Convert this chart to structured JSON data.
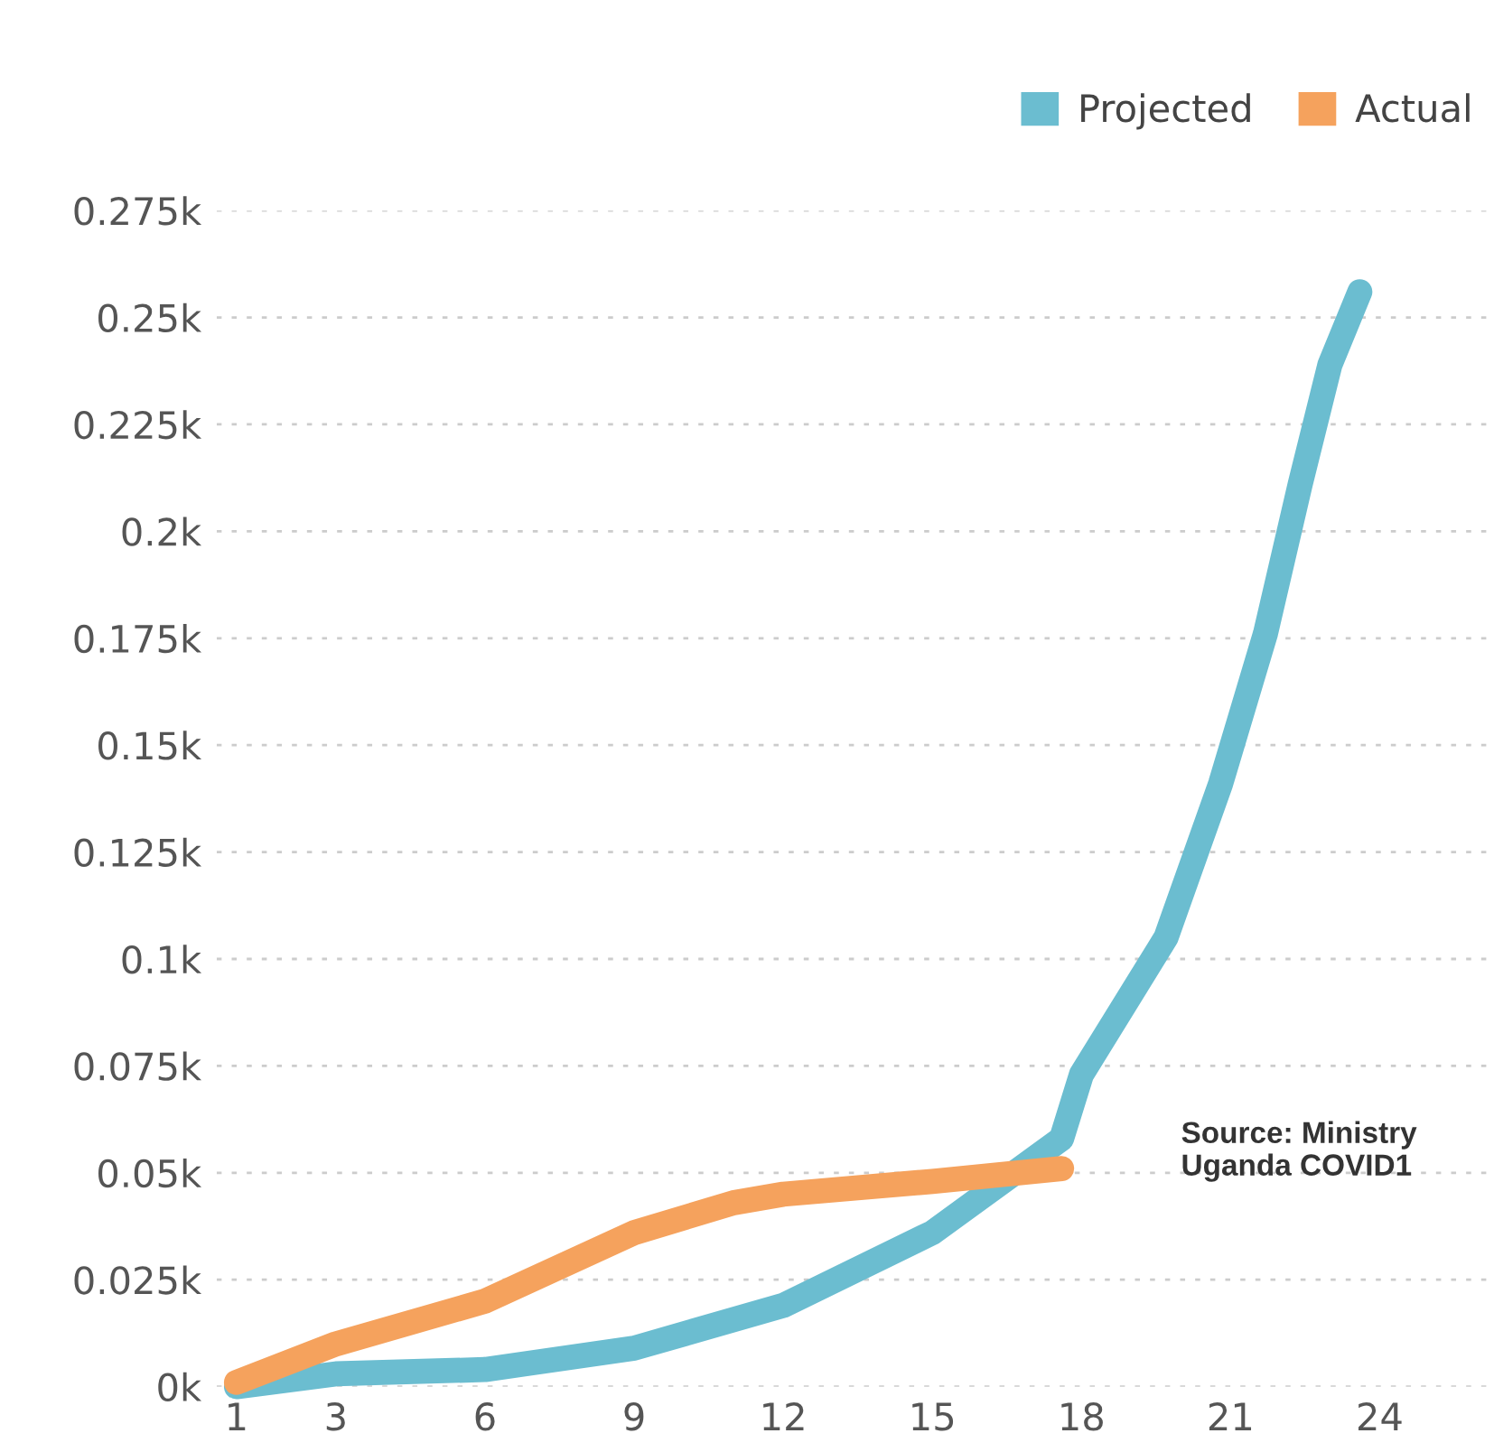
{
  "chart_data": {
    "type": "line",
    "series": [
      {
        "name": "Projected",
        "color": "#6bbdd0",
        "x": [
          1,
          3,
          6,
          9,
          12,
          15,
          17.6,
          18,
          19.7,
          20.8,
          21.7,
          22.4,
          23,
          23.6
        ],
        "values": [
          0,
          0.003,
          0.004,
          0.009,
          0.019,
          0.036,
          0.058,
          0.073,
          0.105,
          0.141,
          0.176,
          0.211,
          0.239,
          0.256
        ]
      },
      {
        "name": "Actual",
        "color": "#f5a25d",
        "x": [
          1,
          3,
          6,
          9,
          11,
          12,
          15,
          17.6
        ],
        "values": [
          0.001,
          0.01,
          0.02,
          0.036,
          0.043,
          0.045,
          0.048,
          0.051
        ]
      }
    ],
    "xlim": [
      0.6,
      26.3
    ],
    "xticks": [
      1,
      3,
      6,
      9,
      12,
      15,
      18,
      21,
      24
    ],
    "ylim": [
      0,
      0.275
    ],
    "yticks": [
      {
        "value": 0,
        "label": "0k"
      },
      {
        "value": 0.025,
        "label": "0.025k"
      },
      {
        "value": 0.05,
        "label": "0.05k"
      },
      {
        "value": 0.075,
        "label": "0.075k"
      },
      {
        "value": 0.1,
        "label": "0.1k"
      },
      {
        "value": 0.125,
        "label": "0.125k"
      },
      {
        "value": 0.15,
        "label": "0.15k"
      },
      {
        "value": 0.175,
        "label": "0.175k"
      },
      {
        "value": 0.2,
        "label": "0.2k"
      },
      {
        "value": 0.225,
        "label": "0.225k"
      },
      {
        "value": 0.25,
        "label": "0.25k"
      },
      {
        "value": 0.275,
        "label": "0.275k"
      }
    ],
    "grid": "y",
    "legend": "top right",
    "line_style": "solid",
    "annotations": [
      "Source: Ministry\nUganda COVID1"
    ]
  }
}
